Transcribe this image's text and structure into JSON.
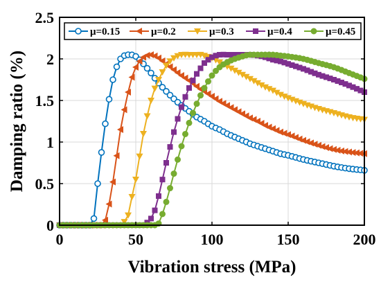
{
  "chart_data": {
    "type": "line",
    "xlabel": "Vibration stress (MPa)",
    "ylabel": "Damping ratio (%)",
    "xlim": [
      0,
      200
    ],
    "ylim": [
      0,
      2.5
    ],
    "x_ticks": [
      "0",
      "50",
      "100",
      "150",
      "200"
    ],
    "y_ticks": [
      "0",
      "0.5",
      "1",
      "1.5",
      "2",
      "2.5"
    ],
    "grid": true,
    "legend_position": "top",
    "x": [
      0,
      10,
      20,
      22,
      25,
      30,
      35,
      40,
      45,
      47,
      50,
      55,
      60,
      62,
      65,
      70,
      75,
      80,
      85,
      90,
      93,
      95,
      100,
      105,
      110,
      115,
      120,
      124,
      125,
      130,
      135,
      140,
      145,
      150,
      160,
      170,
      180,
      190,
      200
    ],
    "series": [
      {
        "name": "μ=0.15",
        "color": "#0072BD",
        "marker": "circle",
        "values": [
          0,
          0,
          0,
          0.02,
          0.5,
          1.22,
          1.75,
          2.0,
          2.05,
          2.05,
          2.03,
          1.94,
          1.83,
          1.78,
          1.71,
          1.61,
          1.52,
          1.44,
          1.37,
          1.3,
          1.27,
          1.25,
          1.19,
          1.15,
          1.1,
          1.06,
          1.02,
          0.99,
          0.98,
          0.95,
          0.92,
          0.89,
          0.86,
          0.84,
          0.79,
          0.75,
          0.71,
          0.68,
          0.66
        ]
      },
      {
        "name": "μ=0.2",
        "color": "#D95319",
        "marker": "triangle-left",
        "values": [
          0,
          0,
          0,
          0,
          0,
          0.06,
          0.52,
          1.15,
          1.6,
          1.75,
          1.9,
          2.02,
          2.05,
          2.04,
          2.01,
          1.94,
          1.87,
          1.8,
          1.74,
          1.67,
          1.63,
          1.61,
          1.55,
          1.49,
          1.44,
          1.39,
          1.34,
          1.3,
          1.29,
          1.25,
          1.2,
          1.16,
          1.12,
          1.09,
          1.02,
          0.96,
          0.91,
          0.88,
          0.86
        ]
      },
      {
        "name": "μ=0.3",
        "color": "#EDB120",
        "marker": "triangle-down",
        "values": [
          0,
          0,
          0,
          0,
          0,
          0,
          0,
          0,
          0.12,
          0.3,
          0.55,
          1.1,
          1.5,
          1.62,
          1.75,
          1.92,
          2.01,
          2.05,
          2.05,
          2.05,
          2.05,
          2.04,
          2.01,
          1.96,
          1.91,
          1.86,
          1.81,
          1.77,
          1.76,
          1.71,
          1.66,
          1.62,
          1.57,
          1.53,
          1.46,
          1.4,
          1.35,
          1.3,
          1.27
        ]
      },
      {
        "name": "μ=0.4",
        "color": "#7E2F8E",
        "marker": "square",
        "values": [
          0,
          0,
          0,
          0,
          0,
          0,
          0,
          0,
          0,
          0,
          0,
          0,
          0.08,
          0.15,
          0.35,
          0.75,
          1.12,
          1.42,
          1.65,
          1.82,
          1.9,
          1.95,
          2.02,
          2.05,
          2.05,
          2.05,
          2.05,
          2.05,
          2.05,
          2.04,
          2.02,
          1.99,
          1.97,
          1.94,
          1.88,
          1.81,
          1.75,
          1.68,
          1.6
        ]
      },
      {
        "name": "μ=0.45",
        "color": "#77AC30",
        "marker": "circle-filled",
        "values": [
          0,
          0,
          0,
          0,
          0,
          0,
          0,
          0,
          0,
          0,
          0,
          0,
          0,
          0,
          0.02,
          0.28,
          0.62,
          0.95,
          1.23,
          1.46,
          1.58,
          1.65,
          1.8,
          1.9,
          1.96,
          2.0,
          2.03,
          2.05,
          2.05,
          2.05,
          2.05,
          2.05,
          2.04,
          2.03,
          2.0,
          1.95,
          1.9,
          1.83,
          1.76
        ]
      }
    ]
  }
}
